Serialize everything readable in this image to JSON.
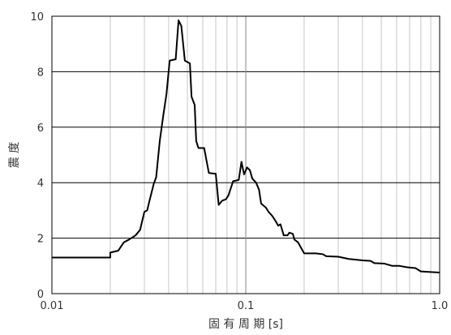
{
  "chart_data": {
    "type": "line",
    "xlabel": "固 有 周 期 [s]",
    "ylabel": "震 度",
    "xscale": "log",
    "xlim": [
      0.01,
      1.0
    ],
    "ylim": [
      0,
      10
    ],
    "grid": true,
    "xticks": [
      {
        "value": 0.01,
        "label": "0.01"
      },
      {
        "value": 0.1,
        "label": "0.1"
      },
      {
        "value": 1.0,
        "label": "1.0"
      }
    ],
    "yticks": [
      0,
      2,
      4,
      6,
      8,
      10
    ],
    "series": [
      {
        "color": "#000000",
        "points": [
          [
            0.01,
            1.3
          ],
          [
            0.02,
            1.3
          ],
          [
            0.02,
            1.48
          ],
          [
            0.022,
            1.55
          ],
          [
            0.0235,
            1.85
          ],
          [
            0.025,
            1.95
          ],
          [
            0.027,
            2.1
          ],
          [
            0.0285,
            2.3
          ],
          [
            0.03,
            2.95
          ],
          [
            0.031,
            3.0
          ],
          [
            0.032,
            3.4
          ],
          [
            0.0335,
            3.95
          ],
          [
            0.0345,
            4.2
          ],
          [
            0.036,
            5.5
          ],
          [
            0.0375,
            6.4
          ],
          [
            0.039,
            7.2
          ],
          [
            0.0405,
            8.4
          ],
          [
            0.0435,
            8.45
          ],
          [
            0.045,
            9.85
          ],
          [
            0.0465,
            9.65
          ],
          [
            0.0485,
            8.4
          ],
          [
            0.0515,
            8.3
          ],
          [
            0.0525,
            7.1
          ],
          [
            0.0545,
            6.8
          ],
          [
            0.0555,
            5.5
          ],
          [
            0.057,
            5.25
          ],
          [
            0.061,
            5.25
          ],
          [
            0.0645,
            4.35
          ],
          [
            0.07,
            4.32
          ],
          [
            0.0725,
            3.2
          ],
          [
            0.0755,
            3.35
          ],
          [
            0.079,
            3.4
          ],
          [
            0.0815,
            3.55
          ],
          [
            0.086,
            4.05
          ],
          [
            0.092,
            4.1
          ],
          [
            0.095,
            4.75
          ],
          [
            0.098,
            4.3
          ],
          [
            0.1015,
            4.55
          ],
          [
            0.105,
            4.45
          ],
          [
            0.108,
            4.15
          ],
          [
            0.113,
            4.0
          ],
          [
            0.117,
            3.75
          ],
          [
            0.12,
            3.25
          ],
          [
            0.127,
            3.1
          ],
          [
            0.131,
            2.95
          ],
          [
            0.137,
            2.8
          ],
          [
            0.143,
            2.6
          ],
          [
            0.147,
            2.45
          ],
          [
            0.151,
            2.5
          ],
          [
            0.157,
            2.1
          ],
          [
            0.164,
            2.1
          ],
          [
            0.168,
            2.2
          ],
          [
            0.175,
            2.15
          ],
          [
            0.178,
            1.95
          ],
          [
            0.186,
            1.85
          ],
          [
            0.2,
            1.45
          ],
          [
            0.23,
            1.45
          ],
          [
            0.25,
            1.42
          ],
          [
            0.26,
            1.35
          ],
          [
            0.3,
            1.33
          ],
          [
            0.34,
            1.25
          ],
          [
            0.4,
            1.2
          ],
          [
            0.44,
            1.18
          ],
          [
            0.46,
            1.1
          ],
          [
            0.52,
            1.08
          ],
          [
            0.57,
            1.0
          ],
          [
            0.62,
            1.0
          ],
          [
            0.68,
            0.95
          ],
          [
            0.75,
            0.92
          ],
          [
            0.8,
            0.8
          ],
          [
            0.9,
            0.78
          ],
          [
            1.0,
            0.76
          ]
        ]
      }
    ]
  }
}
